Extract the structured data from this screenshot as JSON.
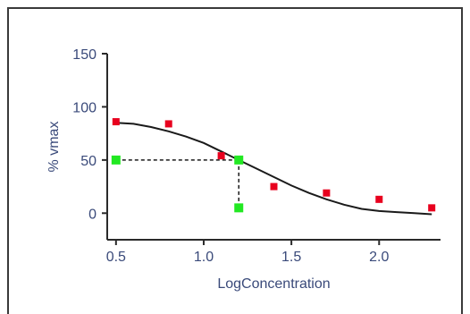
{
  "chart_data": {
    "type": "scatter",
    "title": "",
    "xlabel": "LogConcentration",
    "ylabel": "% vmax",
    "xlim": [
      0.45,
      2.35
    ],
    "ylim": [
      -25,
      150
    ],
    "x_ticks": [
      0.5,
      1.0,
      1.5,
      2.0
    ],
    "x_tick_labels": [
      "0.5",
      "1.0",
      "1.5",
      "2.0"
    ],
    "y_ticks": [
      0,
      50,
      100,
      150
    ],
    "y_tick_labels": [
      "0",
      "50",
      "100",
      "150"
    ],
    "grid": false,
    "legend": "none",
    "series": [
      {
        "type": "scatter",
        "color": "#e8001e",
        "marker": "square",
        "x": [
          0.5,
          0.8,
          1.1,
          1.4,
          1.7,
          2.0,
          2.3
        ],
        "y": [
          86,
          84,
          54,
          25,
          19,
          13,
          5
        ]
      },
      {
        "type": "line",
        "color": "#1a1a1a",
        "x": [
          0.5,
          0.6,
          0.7,
          0.8,
          0.9,
          1.0,
          1.1,
          1.2,
          1.3,
          1.4,
          1.5,
          1.6,
          1.7,
          1.8,
          1.9,
          2.0,
          2.1,
          2.2,
          2.3
        ],
        "y": [
          85,
          84,
          81,
          77,
          72,
          66,
          58,
          50,
          42,
          34,
          26,
          19,
          13,
          8,
          4,
          2,
          1,
          0,
          -1
        ]
      },
      {
        "type": "reference",
        "color": "#22e822",
        "marker": "square",
        "x": [
          0.5,
          1.2,
          1.2
        ],
        "y": [
          50,
          50,
          5
        ]
      }
    ]
  }
}
